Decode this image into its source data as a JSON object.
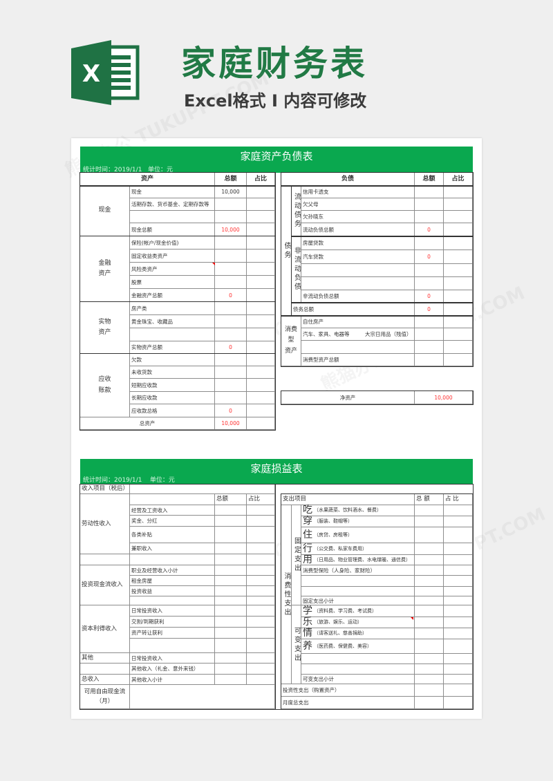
{
  "header": {
    "title": "家庭财务表",
    "subtitle": "Excel格式 I 内容可修改",
    "logo_letter": "X"
  },
  "watermark": "熊猫办公 TUKUPPT.COM",
  "colors": {
    "brand_green": "#0aa84f",
    "title_green": "#217a45",
    "value_red": "#ff3030"
  },
  "balance": {
    "title": "家庭资产负债表",
    "meta": "统计时间：2019/1/1   单位：元",
    "assets": {
      "header": {
        "item": "资产",
        "total": "总额",
        "ratio": "占比"
      },
      "groups": [
        {
          "name": "现金",
          "rows": [
            {
              "item": "现金",
              "total": "10,000"
            },
            {
              "item": "活期存款、货币基金、定期存款等",
              "total": ""
            },
            {
              "item": "",
              "total": ""
            },
            {
              "item": "现金总额",
              "total": "10,000"
            }
          ]
        },
        {
          "name": "金融\n资产",
          "rows": [
            {
              "item": "保险(帐户/现金价值)",
              "total": ""
            },
            {
              "item": "固定收益类资产",
              "total": ""
            },
            {
              "item": "风险类资产",
              "total": ""
            },
            {
              "item": "股票",
              "total": ""
            },
            {
              "item": "金融资产总额",
              "total": "0"
            }
          ]
        },
        {
          "name": "实物\n资产",
          "rows": [
            {
              "item": "房产类",
              "total": ""
            },
            {
              "item": "黄金珠宝、收藏品",
              "total": ""
            },
            {
              "item": "",
              "total": ""
            },
            {
              "item": "实物资产总额",
              "total": "0"
            }
          ]
        },
        {
          "name": "应收\n账款",
          "rows": [
            {
              "item": "欠款",
              "total": ""
            },
            {
              "item": "未收货款",
              "total": ""
            },
            {
              "item": "短期应收款",
              "total": ""
            },
            {
              "item": "长期应收款",
              "total": ""
            },
            {
              "item": "应收款总格",
              "total": "0"
            }
          ]
        }
      ],
      "grand_total": {
        "label": "总资产",
        "total": "10,000"
      }
    },
    "liabilities": {
      "header": {
        "item": "负债",
        "total": "总额",
        "ratio": "占比"
      },
      "category": "债务",
      "current": {
        "name": "流动债务",
        "rows": [
          {
            "item": "信用卡透支",
            "total": ""
          },
          {
            "item": "欠父母",
            "total": ""
          },
          {
            "item": "欠孙晓东",
            "total": ""
          },
          {
            "item": "流动负债总额",
            "total": "0"
          }
        ]
      },
      "noncurrent": {
        "name": "非流动负债",
        "rows": [
          {
            "item": "房屋贷款",
            "total": ""
          },
          {
            "item": "汽车贷款",
            "total": "0"
          },
          {
            "item": "",
            "total": ""
          },
          {
            "item": "",
            "total": ""
          },
          {
            "item": "非流动负债总额",
            "total": "0"
          }
        ]
      },
      "debt_total": {
        "label": "债务总额",
        "total": "0"
      },
      "consumer_assets": {
        "name": "消费型\n资产",
        "rows": [
          {
            "item": "自住房产",
            "total": ""
          },
          {
            "item": "汽车、家具、电器等",
            "extra": "大宗日用品（残值）",
            "total": ""
          },
          {
            "item": "",
            "total": ""
          },
          {
            "item": "消费型资产总额",
            "total": ""
          }
        ]
      }
    },
    "net_assets": {
      "label": "净资产",
      "total": "10,000"
    }
  },
  "income_statement": {
    "title": "家庭损益表",
    "meta": "统计时间：2019/1/1    单位：元",
    "income": {
      "section_label": "收入项目（税后）",
      "header": {
        "total": "总额",
        "ratio": "占比"
      },
      "groups": [
        {
          "name": "劳动性收入",
          "rows": [
            "经营及工资收入",
            "奖金、分红",
            "各类补贴",
            "兼职收入"
          ]
        },
        {
          "name": "投资现金流收入",
          "rows": [
            "职业及经营收入小计",
            "租金房屋",
            "投资收益",
            ""
          ]
        },
        {
          "name": "资本利得收入",
          "rows": [
            "日常投资收入",
            "交割/到期获利",
            "资产转让获利",
            ""
          ]
        }
      ],
      "misc": [
        {
          "label": "其他",
          "item": "日常投资收入"
        },
        {
          "label": "",
          "item": "其他收入（礼金、意外来钱）"
        },
        {
          "label": "总收入",
          "item": "其他收入小计"
        }
      ],
      "free_cash_flow": "可用自由现金流\n（月）"
    },
    "expense": {
      "section_label": "支出项目",
      "header": {
        "total": "总 额",
        "ratio": "占 比"
      },
      "category": "消费性支出",
      "fixed": {
        "name": "固定支出",
        "rows": [
          {
            "char": "吃",
            "desc": "（水果蔬菜、饮料酒水、餐费）"
          },
          {
            "char": "穿",
            "desc": "（服装、鞋帽等）"
          },
          {
            "char": "住",
            "desc": "（房贷、房租等）"
          },
          {
            "char": "行",
            "desc": "（公交费、私家车费用）"
          },
          {
            "char": "用",
            "desc": "（日用品、物业管理费、水电煤暖、通信费）"
          },
          {
            "item": "消费型保险（人身险、家财险）"
          },
          {
            "item": ""
          },
          {
            "item": ""
          },
          {
            "item": "固定支出小计"
          }
        ]
      },
      "variable": {
        "name": "可变支出",
        "rows": [
          {
            "char": "学",
            "desc": "（资料费、学习费、考试费）"
          },
          {
            "char": "乐",
            "desc": "（旅游、娱乐、运动）"
          },
          {
            "char": "情",
            "desc": "（请客送礼、慈善捐助）"
          },
          {
            "char": "养",
            "desc": "（医药费、保健费、美容）"
          },
          {
            "item": ""
          },
          {
            "item": ""
          },
          {
            "item": "可变支出小计"
          }
        ]
      },
      "investment": "投资性支出（购置资产）",
      "monthly_total": "月度总支出"
    }
  }
}
